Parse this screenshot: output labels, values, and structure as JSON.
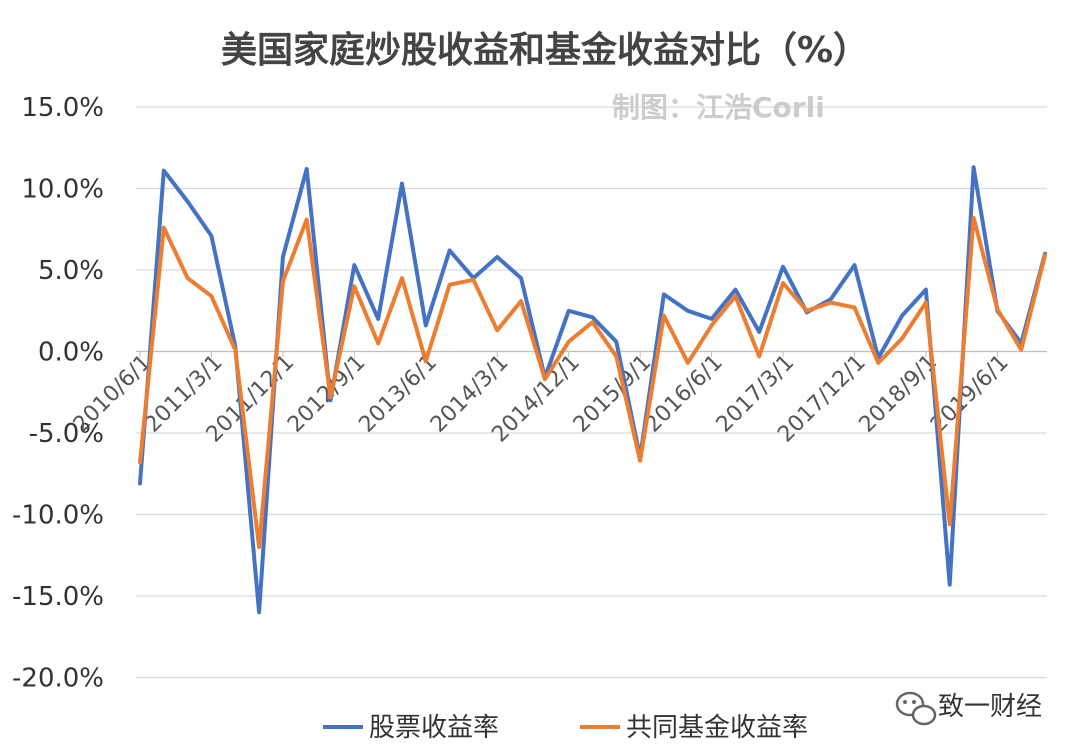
{
  "chart_data": {
    "type": "line",
    "title": "美国家庭炒股收益和基金收益对比（%）",
    "watermark": "制图：江浩Corli",
    "ylim": [
      -20,
      15
    ],
    "yticks": [
      "15.0%",
      "10.0%",
      "5.0%",
      "0.0%",
      "-5.0%",
      "-10.0%",
      "-15.0%",
      "-20.0%"
    ],
    "ytick_values": [
      15,
      10,
      5,
      0,
      -5,
      -10,
      -15,
      -20
    ],
    "grid": true,
    "legend_position": "bottom",
    "x": [
      "2010/6/1",
      "2010/9/1",
      "2010/12/1",
      "2011/3/1",
      "2011/6/1",
      "2011/9/1",
      "2011/12/1",
      "2012/3/1",
      "2012/6/1",
      "2012/9/1",
      "2012/12/1",
      "2013/3/1",
      "2013/6/1",
      "2013/9/1",
      "2013/12/1",
      "2014/3/1",
      "2014/6/1",
      "2014/9/1",
      "2014/12/1",
      "2015/3/1",
      "2015/6/1",
      "2015/9/1",
      "2015/12/1",
      "2016/3/1",
      "2016/6/1",
      "2016/9/1",
      "2016/12/1",
      "2017/3/1",
      "2017/6/1",
      "2017/9/1",
      "2017/12/1",
      "2018/3/1",
      "2018/6/1",
      "2018/9/1",
      "2018/12/1",
      "2019/3/1",
      "2019/6/1",
      "2019/9/1",
      "2019/12/1"
    ],
    "xtick_labels": [
      {
        "label": "2010/6/1",
        "index": 0
      },
      {
        "label": "2011/3/1",
        "index": 3
      },
      {
        "label": "2011/12/1",
        "index": 6
      },
      {
        "label": "2012/9/1",
        "index": 9
      },
      {
        "label": "2013/6/1",
        "index": 12
      },
      {
        "label": "2014/3/1",
        "index": 15
      },
      {
        "label": "2014/12/1",
        "index": 18
      },
      {
        "label": "2015/9/1",
        "index": 21
      },
      {
        "label": "2016/6/1",
        "index": 24
      },
      {
        "label": "2017/3/1",
        "index": 27
      },
      {
        "label": "2017/12/1",
        "index": 30
      },
      {
        "label": "2018/9/1",
        "index": 33
      },
      {
        "label": "2019/6/1",
        "index": 36
      }
    ],
    "series": [
      {
        "name": "股票收益率",
        "color": "#4472C4",
        "values": [
          -8.1,
          11.1,
          9.2,
          7.1,
          0.3,
          -16.0,
          5.8,
          11.2,
          -3.0,
          5.3,
          2.0,
          10.3,
          1.6,
          6.2,
          4.5,
          5.8,
          4.5,
          -1.6,
          2.5,
          2.1,
          0.6,
          -6.5,
          3.5,
          2.5,
          2.0,
          3.8,
          1.2,
          5.2,
          2.4,
          3.2,
          5.3,
          -0.4,
          2.2,
          3.8,
          -14.3,
          11.3,
          2.5,
          0.5,
          6.0
        ]
      },
      {
        "name": "共同基金收益率",
        "color": "#ED7D31",
        "values": [
          -6.8,
          7.6,
          4.5,
          3.4,
          0.1,
          -12.0,
          4.3,
          8.1,
          -2.8,
          4.0,
          0.5,
          4.5,
          -0.6,
          4.1,
          4.4,
          1.3,
          3.1,
          -1.7,
          0.6,
          1.8,
          -0.3,
          -6.7,
          2.2,
          -0.7,
          1.6,
          3.4,
          -0.3,
          4.2,
          2.5,
          3.0,
          2.7,
          -0.7,
          0.8,
          3.0,
          -10.6,
          8.2,
          2.6,
          0.1,
          5.9
        ]
      }
    ]
  },
  "brand": {
    "name": "致一财经",
    "icon": "wechat-icon"
  }
}
